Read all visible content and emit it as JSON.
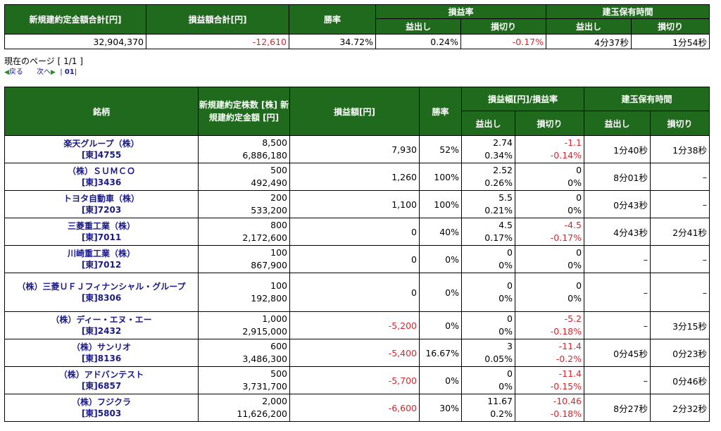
{
  "summary": {
    "headers": {
      "total_contract": "新規建約定金額合計[円]",
      "total_pl": "損益額合計[円]",
      "win_rate": "勝率",
      "pl_rate": "損益率",
      "holding_time": "建玉保有時間",
      "profit": "益出し",
      "loss": "損切り"
    },
    "values": {
      "total_contract": "32,904,370",
      "total_pl": "-12,610",
      "win_rate": "34.72%",
      "rate_profit": "0.24%",
      "rate_loss": "-0.17%",
      "time_profit": "4分37秒",
      "time_loss": "1分54秒"
    }
  },
  "pager": {
    "current_page": "現在のページ [ 1/1 ]",
    "back": "戻る",
    "next": "次へ",
    "page_link": "01"
  },
  "detail": {
    "headers": {
      "issue": "銘柄",
      "shares_amount": "新規建約定株数 [株] 新規建約定金額 [円]",
      "pl": "損益額[円]",
      "win_rate": "勝率",
      "pl_width_rate": "損益幅[円]/損益率",
      "holding_time": "建玉保有時間",
      "profit": "益出し",
      "loss": "損切り"
    },
    "rows": [
      {
        "name": "楽天グループ（株）",
        "code": "[東]4755",
        "shares": "8,500",
        "amount": "6,886,180",
        "pl": "7,930",
        "win": "52%",
        "pw": "2.74",
        "pr": "0.34%",
        "lw": "-1.1",
        "lr": "-0.14%",
        "tp": "1分40秒",
        "tl": "1分38秒"
      },
      {
        "name": "（株）ＳＵＭＣＯ",
        "code": "[東]3436",
        "shares": "500",
        "amount": "492,490",
        "pl": "1,260",
        "win": "100%",
        "pw": "2.52",
        "pr": "0.26%",
        "lw": "0",
        "lr": "0%",
        "tp": "8分01秒",
        "tl": "–"
      },
      {
        "name": "トヨタ自動車（株）",
        "code": "[東]7203",
        "shares": "200",
        "amount": "533,200",
        "pl": "1,100",
        "win": "100%",
        "pw": "5.5",
        "pr": "0.21%",
        "lw": "0",
        "lr": "0%",
        "tp": "0分43秒",
        "tl": "–"
      },
      {
        "name": "三菱重工業（株）",
        "code": "[東]7011",
        "shares": "800",
        "amount": "2,172,600",
        "pl": "0",
        "win": "40%",
        "pw": "4.5",
        "pr": "0.17%",
        "lw": "-4.5",
        "lr": "-0.17%",
        "tp": "4分43秒",
        "tl": "2分41秒"
      },
      {
        "name": "川崎重工業（株）",
        "code": "[東]7012",
        "shares": "100",
        "amount": "867,900",
        "pl": "0",
        "win": "0%",
        "pw": "0",
        "pr": "0%",
        "lw": "0",
        "lr": "0%",
        "tp": "–",
        "tl": "–"
      },
      {
        "name": "（株）三菱ＵＦＪフィナンシャル・グループ",
        "code": "[東]8306",
        "shares": "100",
        "amount": "192,800",
        "pl": "0",
        "win": "0%",
        "pw": "0",
        "pr": "0%",
        "lw": "0",
        "lr": "0%",
        "tp": "–",
        "tl": "–"
      },
      {
        "name": "（株）ディー・エヌ・エー",
        "code": "[東]2432",
        "shares": "1,000",
        "amount": "2,915,000",
        "pl": "-5,200",
        "win": "0%",
        "pw": "0",
        "pr": "0%",
        "lw": "-5.2",
        "lr": "-0.18%",
        "tp": "–",
        "tl": "3分15秒"
      },
      {
        "name": "（株）サンリオ",
        "code": "[東]8136",
        "shares": "600",
        "amount": "3,486,300",
        "pl": "-5,400",
        "win": "16.67%",
        "pw": "3",
        "pr": "0.05%",
        "lw": "-11.4",
        "lr": "-0.2%",
        "tp": "0分45秒",
        "tl": "0分23秒"
      },
      {
        "name": "（株）アドバンテスト",
        "code": "[東]6857",
        "shares": "500",
        "amount": "3,731,700",
        "pl": "-5,700",
        "win": "0%",
        "pw": "0",
        "pr": "0%",
        "lw": "-11.4",
        "lr": "-0.15%",
        "tp": "–",
        "tl": "0分46秒"
      },
      {
        "name": "（株）フジクラ",
        "code": "[東]5803",
        "shares": "2,000",
        "amount": "11,626,200",
        "pl": "-6,600",
        "win": "30%",
        "pw": "11.67",
        "pr": "0.2%",
        "lw": "-10.46",
        "lr": "-0.18%",
        "tp": "8分27秒",
        "tl": "2分32秒"
      }
    ]
  },
  "colors": {
    "header_bg": "#1f6a1c",
    "negative": "#e0242b",
    "link": "#1a1a8a"
  }
}
